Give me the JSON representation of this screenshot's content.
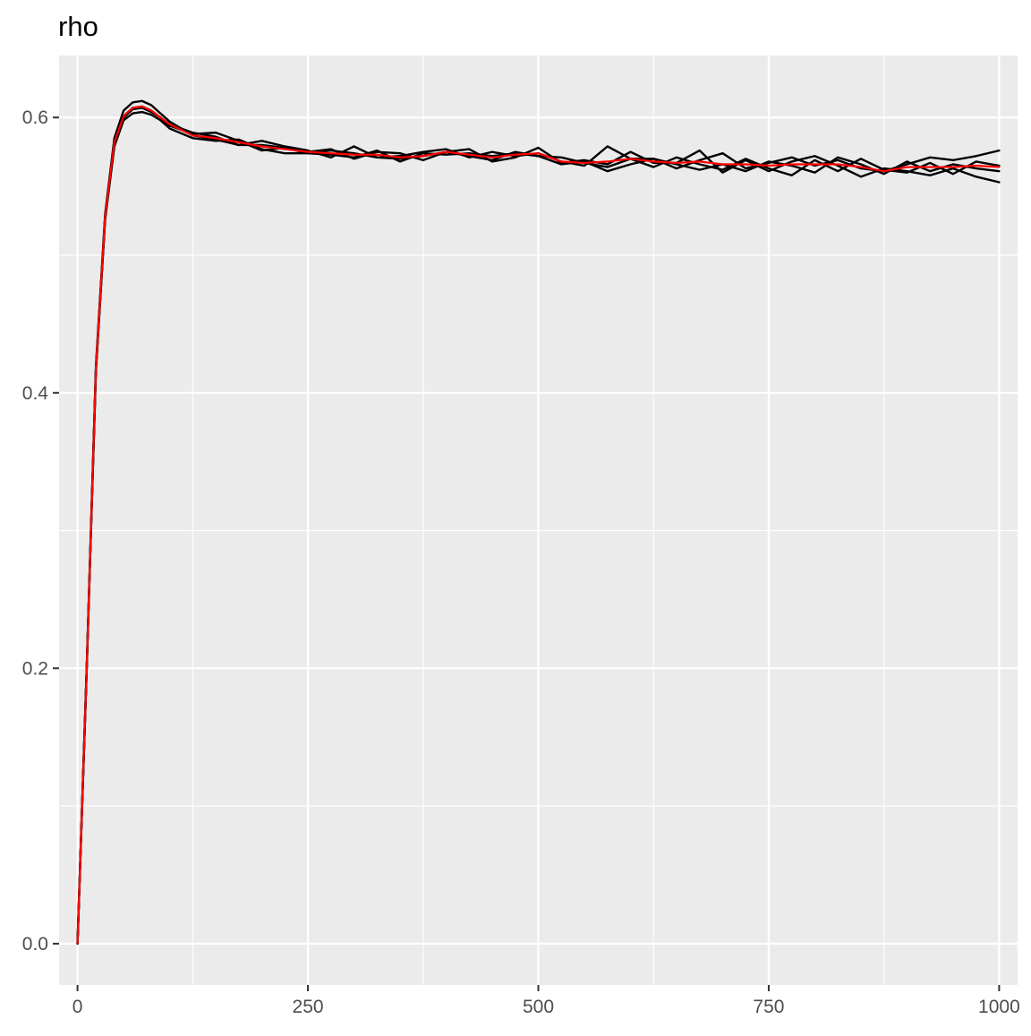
{
  "chart_data": {
    "type": "line",
    "title": "rho",
    "xlabel": "",
    "ylabel": "",
    "xlim": [
      -20,
      1020
    ],
    "ylim": [
      -0.03,
      0.645
    ],
    "x_ticks": [
      0,
      250,
      500,
      750,
      1000
    ],
    "x_tick_labels": [
      "0",
      "250",
      "500",
      "750",
      "1000"
    ],
    "y_ticks": [
      0.0,
      0.2,
      0.4,
      0.6
    ],
    "y_tick_labels": [
      "0.0",
      "0.2",
      "0.4",
      "0.6"
    ],
    "x_minor_ticks": [
      125,
      375,
      625,
      875
    ],
    "y_minor_ticks": [
      0.1,
      0.3,
      0.5
    ],
    "grid": true,
    "legend": "none",
    "colors": {
      "panel_background": "#ebebeb",
      "grid_line": "#ffffff",
      "chains": "#000000",
      "mean": "#ff0000"
    },
    "x": [
      0,
      10,
      20,
      30,
      40,
      50,
      60,
      70,
      80,
      90,
      100,
      125,
      150,
      175,
      200,
      225,
      250,
      275,
      300,
      325,
      350,
      375,
      400,
      425,
      450,
      475,
      500,
      525,
      550,
      575,
      600,
      625,
      650,
      675,
      700,
      725,
      750,
      775,
      800,
      825,
      850,
      875,
      900,
      925,
      950,
      975,
      1000
    ],
    "series": [
      {
        "color": "#000000",
        "values": [
          0.0,
          0.2,
          0.42,
          0.53,
          0.585,
          0.605,
          0.611,
          0.612,
          0.609,
          0.603,
          0.597,
          0.587,
          0.584,
          0.58,
          0.583,
          0.579,
          0.576,
          0.571,
          0.579,
          0.571,
          0.572,
          0.575,
          0.577,
          0.571,
          0.575,
          0.572,
          0.574,
          0.568,
          0.565,
          0.579,
          0.57,
          0.57,
          0.563,
          0.569,
          0.574,
          0.563,
          0.567,
          0.571,
          0.565,
          0.569,
          0.563,
          0.561,
          0.566,
          0.571,
          0.569,
          0.572,
          0.576
        ]
      },
      {
        "color": "#000000",
        "values": [
          0.0,
          0.2,
          0.418,
          0.528,
          0.582,
          0.601,
          0.607,
          0.608,
          0.605,
          0.6,
          0.594,
          0.588,
          0.589,
          0.583,
          0.576,
          0.578,
          0.575,
          0.577,
          0.57,
          0.575,
          0.574,
          0.569,
          0.575,
          0.577,
          0.568,
          0.571,
          0.578,
          0.567,
          0.569,
          0.566,
          0.575,
          0.567,
          0.567,
          0.576,
          0.56,
          0.569,
          0.561,
          0.568,
          0.572,
          0.565,
          0.557,
          0.563,
          0.561,
          0.558,
          0.563,
          0.557,
          0.553
        ]
      },
      {
        "color": "#000000",
        "values": [
          0.0,
          0.2,
          0.416,
          0.526,
          0.579,
          0.598,
          0.603,
          0.604,
          0.602,
          0.598,
          0.592,
          0.585,
          0.583,
          0.584,
          0.577,
          0.574,
          0.574,
          0.573,
          0.571,
          0.576,
          0.568,
          0.574,
          0.573,
          0.574,
          0.572,
          0.574,
          0.572,
          0.566,
          0.568,
          0.561,
          0.566,
          0.57,
          0.566,
          0.562,
          0.566,
          0.561,
          0.568,
          0.565,
          0.56,
          0.571,
          0.566,
          0.559,
          0.568,
          0.561,
          0.566,
          0.563,
          0.561
        ]
      },
      {
        "color": "#000000",
        "values": [
          0.0,
          0.2,
          0.417,
          0.527,
          0.58,
          0.6,
          0.606,
          0.607,
          0.604,
          0.6,
          0.595,
          0.589,
          0.586,
          0.58,
          0.58,
          0.578,
          0.574,
          0.576,
          0.574,
          0.571,
          0.57,
          0.572,
          0.575,
          0.572,
          0.569,
          0.575,
          0.572,
          0.571,
          0.567,
          0.564,
          0.57,
          0.564,
          0.571,
          0.566,
          0.562,
          0.57,
          0.563,
          0.558,
          0.569,
          0.561,
          0.57,
          0.562,
          0.56,
          0.567,
          0.559,
          0.568,
          0.565
        ]
      },
      {
        "color": "#ff0000",
        "values": [
          0.0,
          0.2,
          0.418,
          0.528,
          0.582,
          0.601,
          0.607,
          0.608,
          0.605,
          0.6,
          0.595,
          0.587,
          0.585,
          0.582,
          0.579,
          0.577,
          0.575,
          0.574,
          0.573,
          0.573,
          0.571,
          0.572,
          0.575,
          0.573,
          0.571,
          0.573,
          0.574,
          0.568,
          0.567,
          0.568,
          0.57,
          0.568,
          0.567,
          0.568,
          0.566,
          0.566,
          0.565,
          0.566,
          0.566,
          0.566,
          0.564,
          0.561,
          0.564,
          0.564,
          0.564,
          0.565,
          0.564
        ]
      }
    ]
  }
}
